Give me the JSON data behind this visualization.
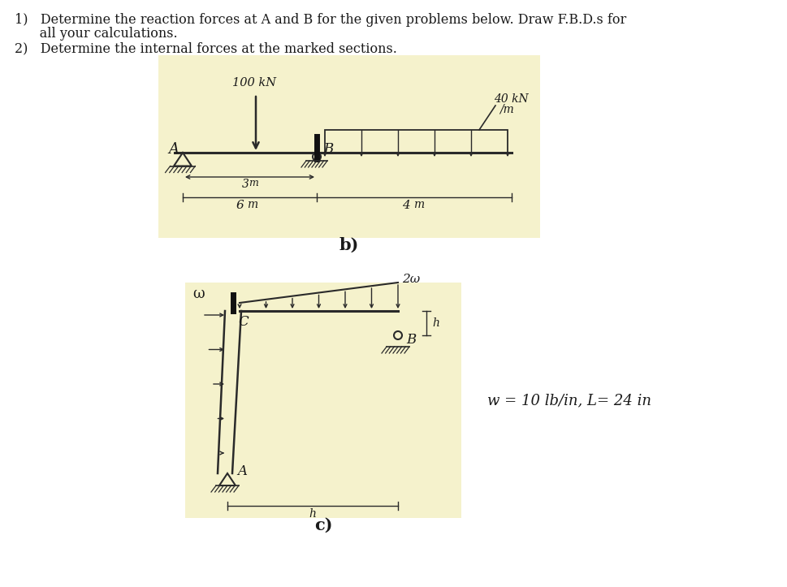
{
  "bg_color": "#ffffff",
  "diagram_bg_color": "#f5f2cc",
  "line_color": "#2a2a2a",
  "text_color": "#1a1a1a",
  "problem_text_1": "1)   Determine the reaction forces at A and B for the given problems below. Draw F.B.D.s for",
  "problem_text_1b": "      all your calculations.",
  "problem_text_2": "2)   Determine the internal forces at the marked sections.",
  "label_b": "b)",
  "label_c": "c)",
  "w_text": "w = 10 lb/in, L= 24 in"
}
